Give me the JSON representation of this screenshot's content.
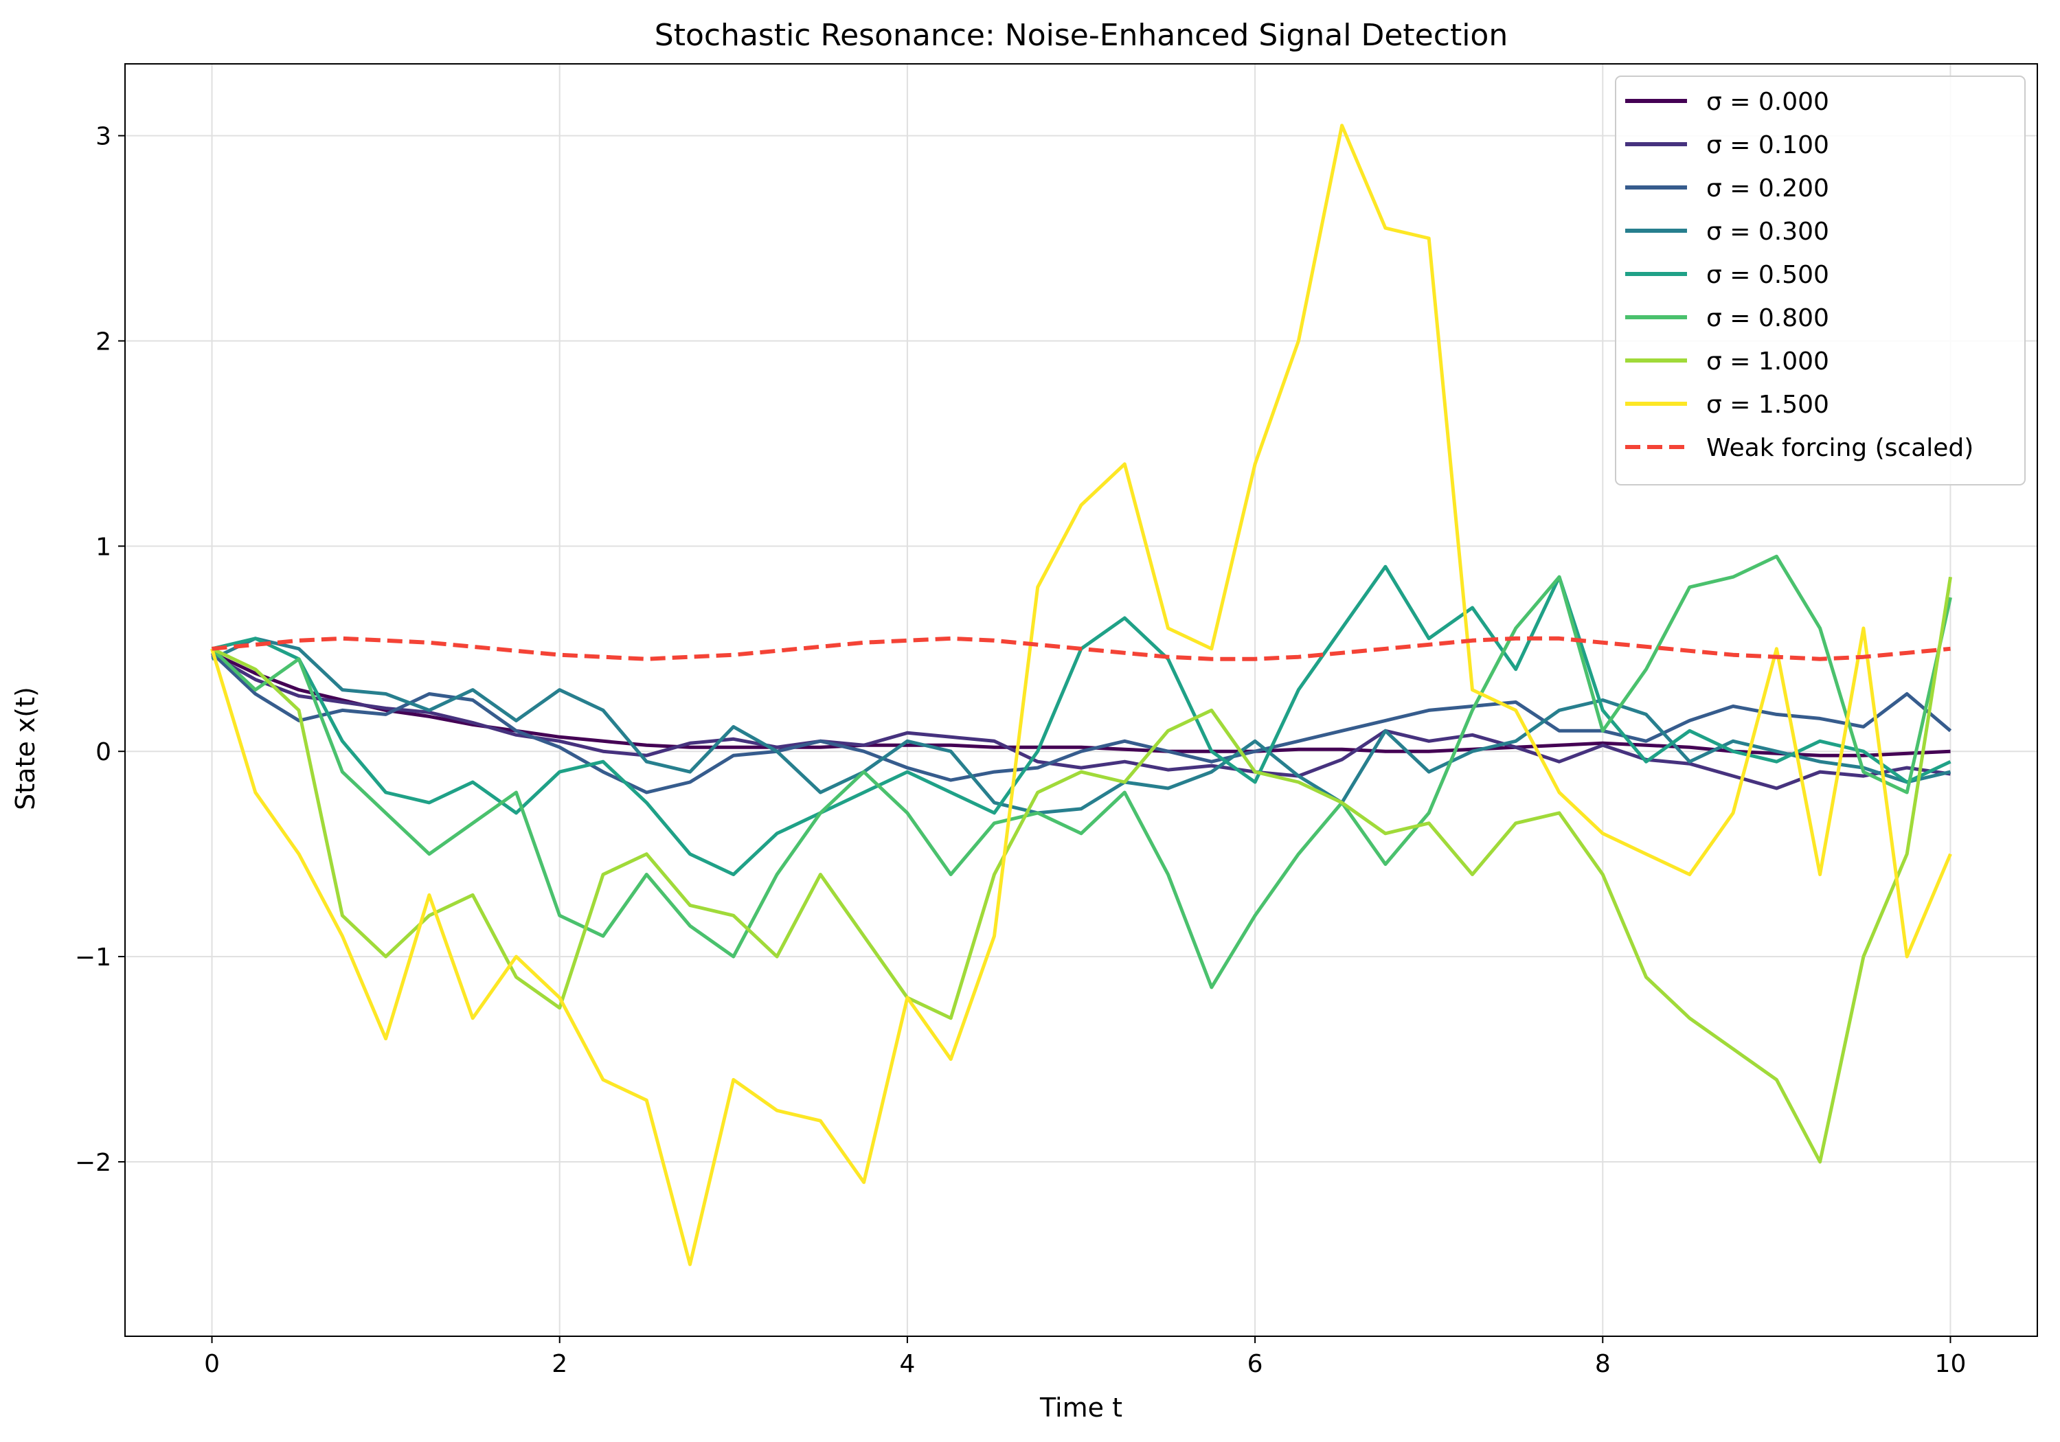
{
  "chart_data": {
    "type": "line",
    "title": "Stochastic Resonance: Noise-Enhanced Signal Detection",
    "xlabel": "Time t",
    "ylabel": "State x(t)",
    "xlim": [
      -0.5,
      10.5
    ],
    "ylim": [
      -2.85,
      3.35
    ],
    "xticks": [
      0,
      2,
      4,
      6,
      8,
      10
    ],
    "xtick_labels": [
      "0",
      "2",
      "4",
      "6",
      "8",
      "10"
    ],
    "yticks": [
      -2,
      -1,
      0,
      1,
      2,
      3
    ],
    "ytick_labels": [
      "−2",
      "−1",
      "0",
      "1",
      "2",
      "3"
    ],
    "grid": true,
    "legend_position": "top-right",
    "series": [
      {
        "name": "σ = 0.000",
        "color": "#440154",
        "style": "solid",
        "x": [
          0,
          0.25,
          0.5,
          0.75,
          1,
          1.25,
          1.5,
          1.75,
          2,
          2.25,
          2.5,
          2.75,
          3,
          3.25,
          3.5,
          3.75,
          4,
          4.25,
          4.5,
          4.75,
          5,
          5.25,
          5.5,
          5.75,
          6,
          6.25,
          6.5,
          6.75,
          7,
          7.25,
          7.5,
          7.75,
          8,
          8.25,
          8.5,
          8.75,
          9,
          9.25,
          9.5,
          9.75,
          10
        ],
        "y": [
          0.48,
          0.38,
          0.3,
          0.25,
          0.2,
          0.17,
          0.13,
          0.1,
          0.07,
          0.05,
          0.03,
          0.02,
          0.02,
          0.02,
          0.02,
          0.03,
          0.03,
          0.03,
          0.02,
          0.02,
          0.02,
          0.01,
          0.0,
          0.0,
          0.0,
          0.01,
          0.01,
          0.0,
          0.0,
          0.01,
          0.02,
          0.03,
          0.04,
          0.03,
          0.02,
          0.0,
          -0.01,
          -0.02,
          -0.02,
          -0.01,
          0.0
        ]
      },
      {
        "name": "σ = 0.100",
        "color": "#46327e",
        "style": "solid",
        "x": [
          0,
          0.25,
          0.5,
          0.75,
          1,
          1.25,
          1.5,
          1.75,
          2,
          2.25,
          2.5,
          2.75,
          3,
          3.25,
          3.5,
          3.75,
          4,
          4.25,
          4.5,
          4.75,
          5,
          5.25,
          5.5,
          5.75,
          6,
          6.25,
          6.5,
          6.75,
          7,
          7.25,
          7.5,
          7.75,
          8,
          8.25,
          8.5,
          8.75,
          9,
          9.25,
          9.5,
          9.75,
          10
        ],
        "y": [
          0.47,
          0.35,
          0.27,
          0.24,
          0.21,
          0.19,
          0.14,
          0.08,
          0.05,
          0.0,
          -0.02,
          0.04,
          0.06,
          0.02,
          0.05,
          0.03,
          0.09,
          0.07,
          0.05,
          -0.05,
          -0.08,
          -0.05,
          -0.09,
          -0.07,
          -0.1,
          -0.12,
          -0.04,
          0.1,
          0.05,
          0.08,
          0.02,
          -0.05,
          0.03,
          -0.04,
          -0.06,
          -0.12,
          -0.18,
          -0.1,
          -0.12,
          -0.08,
          -0.11
        ]
      },
      {
        "name": "σ = 0.200",
        "color": "#365c8d",
        "style": "solid",
        "x": [
          0,
          0.25,
          0.5,
          0.75,
          1,
          1.25,
          1.5,
          1.75,
          2,
          2.25,
          2.5,
          2.75,
          3,
          3.25,
          3.5,
          3.75,
          4,
          4.25,
          4.5,
          4.75,
          5,
          5.25,
          5.5,
          5.75,
          6,
          6.25,
          6.5,
          6.75,
          7,
          7.25,
          7.5,
          7.75,
          8,
          8.25,
          8.5,
          8.75,
          9,
          9.25,
          9.5,
          9.75,
          10
        ],
        "y": [
          0.48,
          0.28,
          0.15,
          0.2,
          0.18,
          0.28,
          0.25,
          0.1,
          0.02,
          -0.1,
          -0.2,
          -0.15,
          -0.02,
          0.0,
          0.05,
          0.0,
          -0.08,
          -0.14,
          -0.1,
          -0.08,
          0.0,
          0.05,
          0.0,
          -0.05,
          0.0,
          0.05,
          0.1,
          0.15,
          0.2,
          0.22,
          0.24,
          0.1,
          0.1,
          0.05,
          0.15,
          0.22,
          0.18,
          0.16,
          0.12,
          0.28,
          0.1
        ]
      },
      {
        "name": "σ = 0.300",
        "color": "#277f8e",
        "style": "solid",
        "x": [
          0,
          0.25,
          0.5,
          0.75,
          1,
          1.25,
          1.5,
          1.75,
          2,
          2.25,
          2.5,
          2.75,
          3,
          3.25,
          3.5,
          3.75,
          4,
          4.25,
          4.5,
          4.75,
          5,
          5.25,
          5.5,
          5.75,
          6,
          6.25,
          6.5,
          6.75,
          7,
          7.25,
          7.5,
          7.75,
          8,
          8.25,
          8.5,
          8.75,
          9,
          9.25,
          9.5,
          9.75,
          10
        ],
        "y": [
          0.45,
          0.55,
          0.5,
          0.3,
          0.28,
          0.2,
          0.3,
          0.15,
          0.3,
          0.2,
          -0.05,
          -0.1,
          0.12,
          0.0,
          -0.2,
          -0.1,
          0.05,
          0.0,
          -0.25,
          -0.3,
          -0.28,
          -0.15,
          -0.18,
          -0.1,
          0.05,
          -0.12,
          -0.25,
          0.1,
          -0.1,
          0.0,
          0.05,
          0.2,
          0.25,
          0.18,
          -0.05,
          0.05,
          0.0,
          -0.05,
          -0.08,
          -0.15,
          -0.1
        ]
      },
      {
        "name": "σ = 0.500",
        "color": "#1fa187",
        "style": "solid",
        "x": [
          0,
          0.25,
          0.5,
          0.75,
          1,
          1.25,
          1.5,
          1.75,
          2,
          2.25,
          2.5,
          2.75,
          3,
          3.25,
          3.5,
          3.75,
          4,
          4.25,
          4.5,
          4.75,
          5,
          5.25,
          5.5,
          5.75,
          6,
          6.25,
          6.5,
          6.75,
          7,
          7.25,
          7.5,
          7.75,
          8,
          8.25,
          8.5,
          8.75,
          9,
          9.25,
          9.5,
          9.75,
          10
        ],
        "y": [
          0.5,
          0.55,
          0.45,
          0.05,
          -0.2,
          -0.25,
          -0.15,
          -0.3,
          -0.1,
          -0.05,
          -0.25,
          -0.5,
          -0.6,
          -0.4,
          -0.3,
          -0.2,
          -0.1,
          -0.2,
          -0.3,
          0.0,
          0.5,
          0.65,
          0.45,
          0.0,
          -0.15,
          0.3,
          0.6,
          0.9,
          0.55,
          0.7,
          0.4,
          0.85,
          0.2,
          -0.05,
          0.1,
          0.0,
          -0.05,
          0.05,
          0.0,
          -0.15,
          -0.05
        ]
      },
      {
        "name": "σ = 0.800",
        "color": "#4ac16d",
        "style": "solid",
        "x": [
          0,
          0.25,
          0.5,
          0.75,
          1,
          1.25,
          1.5,
          1.75,
          2,
          2.25,
          2.5,
          2.75,
          3,
          3.25,
          3.5,
          3.75,
          4,
          4.25,
          4.5,
          4.75,
          5,
          5.25,
          5.5,
          5.75,
          6,
          6.25,
          6.5,
          6.75,
          7,
          7.25,
          7.5,
          7.75,
          8,
          8.25,
          8.5,
          8.75,
          9,
          9.25,
          9.5,
          9.75,
          10
        ],
        "y": [
          0.5,
          0.3,
          0.45,
          -0.1,
          -0.3,
          -0.5,
          -0.35,
          -0.2,
          -0.8,
          -0.9,
          -0.6,
          -0.85,
          -1.0,
          -0.6,
          -0.3,
          -0.1,
          -0.3,
          -0.6,
          -0.35,
          -0.3,
          -0.4,
          -0.2,
          -0.6,
          -1.15,
          -0.8,
          -0.5,
          -0.25,
          -0.55,
          -0.3,
          0.2,
          0.6,
          0.85,
          0.1,
          0.4,
          0.8,
          0.85,
          0.95,
          0.6,
          -0.1,
          -0.2,
          0.75
        ]
      },
      {
        "name": "σ = 1.000",
        "color": "#a0da39",
        "style": "solid",
        "x": [
          0,
          0.25,
          0.5,
          0.75,
          1,
          1.25,
          1.5,
          1.75,
          2,
          2.25,
          2.5,
          2.75,
          3,
          3.25,
          3.5,
          3.75,
          4,
          4.25,
          4.5,
          4.75,
          5,
          5.25,
          5.5,
          5.75,
          6,
          6.25,
          6.5,
          6.75,
          7,
          7.25,
          7.5,
          7.75,
          8,
          8.25,
          8.5,
          8.75,
          9,
          9.25,
          9.5,
          9.75,
          10
        ],
        "y": [
          0.5,
          0.4,
          0.2,
          -0.8,
          -1.0,
          -0.8,
          -0.7,
          -1.1,
          -1.25,
          -0.6,
          -0.5,
          -0.75,
          -0.8,
          -1.0,
          -0.6,
          -0.9,
          -1.2,
          -1.3,
          -0.6,
          -0.2,
          -0.1,
          -0.15,
          0.1,
          0.2,
          -0.1,
          -0.15,
          -0.25,
          -0.4,
          -0.35,
          -0.6,
          -0.35,
          -0.3,
          -0.6,
          -1.1,
          -1.3,
          -1.45,
          -1.6,
          -2.0,
          -1.0,
          -0.5,
          0.85
        ]
      },
      {
        "name": "σ = 1.500",
        "color": "#fde725",
        "style": "solid",
        "x": [
          0,
          0.25,
          0.5,
          0.75,
          1,
          1.25,
          1.5,
          1.75,
          2,
          2.25,
          2.5,
          2.75,
          3,
          3.25,
          3.5,
          3.75,
          4,
          4.25,
          4.5,
          4.75,
          5,
          5.25,
          5.5,
          5.75,
          6,
          6.25,
          6.5,
          6.75,
          7,
          7.25,
          7.5,
          7.75,
          8,
          8.25,
          8.5,
          8.75,
          9,
          9.25,
          9.5,
          9.75,
          10
        ],
        "y": [
          0.5,
          -0.2,
          -0.5,
          -0.9,
          -1.4,
          -0.7,
          -1.3,
          -1.0,
          -1.2,
          -1.6,
          -1.7,
          -2.5,
          -1.6,
          -1.75,
          -1.8,
          -2.1,
          -1.2,
          -1.5,
          -0.9,
          0.8,
          1.2,
          1.4,
          0.6,
          0.5,
          1.4,
          2.0,
          3.05,
          2.55,
          2.5,
          0.3,
          0.2,
          -0.2,
          -0.4,
          -0.5,
          -0.6,
          -0.3,
          0.5,
          -0.6,
          0.6,
          -1.0,
          -0.5
        ]
      },
      {
        "name": "Weak forcing (scaled)",
        "color": "#f44336",
        "style": "dashed",
        "x": [
          0,
          0.25,
          0.5,
          0.75,
          1,
          1.25,
          1.5,
          1.75,
          2,
          2.25,
          2.5,
          2.75,
          3,
          3.25,
          3.5,
          3.75,
          4,
          4.25,
          4.5,
          4.75,
          5,
          5.25,
          5.5,
          5.75,
          6,
          6.25,
          6.5,
          6.75,
          7,
          7.25,
          7.5,
          7.75,
          8,
          8.25,
          8.5,
          8.75,
          9,
          9.25,
          9.5,
          9.75,
          10
        ],
        "y": [
          0.5,
          0.52,
          0.54,
          0.55,
          0.54,
          0.53,
          0.51,
          0.49,
          0.47,
          0.46,
          0.45,
          0.46,
          0.47,
          0.49,
          0.51,
          0.53,
          0.54,
          0.55,
          0.54,
          0.52,
          0.5,
          0.48,
          0.46,
          0.45,
          0.45,
          0.46,
          0.48,
          0.5,
          0.52,
          0.54,
          0.55,
          0.55,
          0.53,
          0.51,
          0.49,
          0.47,
          0.46,
          0.45,
          0.46,
          0.48,
          0.5
        ]
      }
    ]
  }
}
